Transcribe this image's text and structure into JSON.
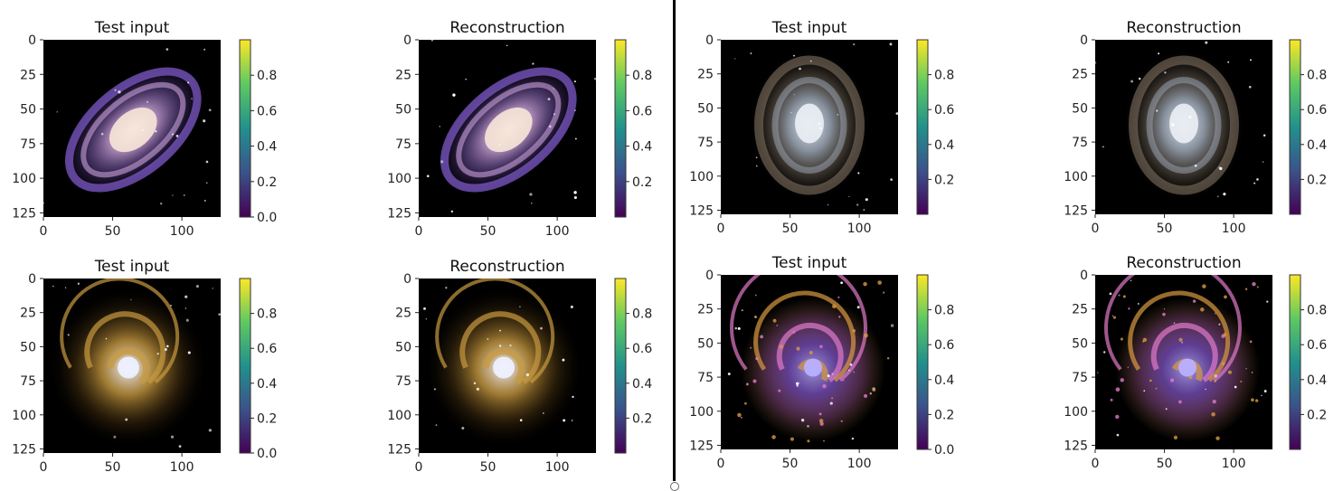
{
  "chart_data": [
    {
      "type": "image",
      "title": "Test input",
      "xticks": [
        "0",
        "50",
        "100"
      ],
      "yticks": [
        "0",
        "25",
        "50",
        "75",
        "100",
        "125"
      ],
      "xlim": [
        0,
        128
      ],
      "ylim": [
        128,
        0
      ],
      "colorbar": {
        "colormap": "viridis",
        "range": [
          0,
          1
        ],
        "ticks": [
          "0.0",
          "0.2",
          "0.4",
          "0.6",
          "0.8"
        ]
      },
      "image_content": {
        "style": "barred-spiral",
        "palette": [
          "#f6e6d8",
          "#c9a0d8",
          "#7e5ac8",
          "#3a1d55"
        ],
        "tilt_deg": -40
      }
    },
    {
      "type": "image",
      "title": "Reconstruction",
      "xticks": [
        "0",
        "50",
        "100"
      ],
      "yticks": [
        "0",
        "25",
        "50",
        "75",
        "100",
        "125"
      ],
      "xlim": [
        0,
        128
      ],
      "ylim": [
        128,
        0
      ],
      "colorbar": {
        "colormap": "viridis",
        "range": [
          0,
          1
        ],
        "ticks": [
          "0.2",
          "0.4",
          "0.6",
          "0.8"
        ]
      },
      "image_content": {
        "style": "barred-spiral",
        "palette": [
          "#f6e6d8",
          "#c9a0d8",
          "#7e5ac8",
          "#3a1d55"
        ],
        "tilt_deg": -40
      }
    },
    {
      "type": "image",
      "title": "Test input",
      "xticks": [
        "0",
        "50",
        "100"
      ],
      "yticks": [
        "0",
        "25",
        "50",
        "75",
        "100",
        "125"
      ],
      "xlim": [
        0,
        128
      ],
      "ylim": [
        128,
        0
      ],
      "colorbar": {
        "colormap": "viridis",
        "range": [
          0,
          1
        ],
        "ticks": [
          "0.2",
          "0.4",
          "0.6",
          "0.8"
        ]
      },
      "image_content": {
        "style": "face-on-dusty",
        "palette": [
          "#e8ecf2",
          "#a8b4c4",
          "#8a7a68",
          "#2a2420"
        ],
        "tilt_deg": 0
      }
    },
    {
      "type": "image",
      "title": "Reconstruction",
      "xticks": [
        "0",
        "50",
        "100"
      ],
      "yticks": [
        "0",
        "25",
        "50",
        "75",
        "100",
        "125"
      ],
      "xlim": [
        0,
        128
      ],
      "ylim": [
        128,
        0
      ],
      "colorbar": {
        "colormap": "viridis",
        "range": [
          0,
          1
        ],
        "ticks": [
          "0.2",
          "0.4",
          "0.6",
          "0.8"
        ]
      },
      "image_content": {
        "style": "face-on-dusty",
        "palette": [
          "#e8ecf2",
          "#a8b4c4",
          "#8a7a68",
          "#2a2420"
        ],
        "tilt_deg": 0
      }
    },
    {
      "type": "image",
      "title": "Test input",
      "xticks": [
        "0",
        "50",
        "100"
      ],
      "yticks": [
        "0",
        "25",
        "50",
        "75",
        "100",
        "125"
      ],
      "xlim": [
        0,
        128
      ],
      "ylim": [
        128,
        0
      ],
      "colorbar": {
        "colormap": "viridis",
        "range": [
          0,
          1
        ],
        "ticks": [
          "0.0",
          "0.2",
          "0.4",
          "0.6",
          "0.8"
        ]
      },
      "image_content": {
        "style": "golden-spiral",
        "palette": [
          "#eef0ff",
          "#c89a40",
          "#6a4a18",
          "#1a1208"
        ],
        "tilt_deg": 0
      }
    },
    {
      "type": "image",
      "title": "Reconstruction",
      "xticks": [
        "0",
        "50",
        "100"
      ],
      "yticks": [
        "0",
        "25",
        "50",
        "75",
        "100",
        "125"
      ],
      "xlim": [
        0,
        128
      ],
      "ylim": [
        128,
        0
      ],
      "colorbar": {
        "colormap": "viridis",
        "range": [
          0,
          1
        ],
        "ticks": [
          "0.2",
          "0.4",
          "0.6",
          "0.8"
        ]
      },
      "image_content": {
        "style": "golden-spiral",
        "palette": [
          "#eef0ff",
          "#c89a40",
          "#6a4a18",
          "#1a1208"
        ],
        "tilt_deg": 0
      }
    },
    {
      "type": "image",
      "title": "Test input",
      "xticks": [
        "0",
        "50",
        "100"
      ],
      "yticks": [
        "0",
        "25",
        "50",
        "75",
        "100",
        "125"
      ],
      "xlim": [
        0,
        128
      ],
      "ylim": [
        128,
        0
      ],
      "colorbar": {
        "colormap": "viridis",
        "range": [
          0,
          1
        ],
        "ticks": [
          "0.0",
          "0.2",
          "0.4",
          "0.6",
          "0.8"
        ]
      },
      "image_content": {
        "style": "pinwheel",
        "palette": [
          "#b8b0ff",
          "#8a5ad8",
          "#e07ac8",
          "#d89a40"
        ],
        "tilt_deg": 0
      }
    },
    {
      "type": "image",
      "title": "Reconstruction",
      "xticks": [
        "0",
        "50",
        "100"
      ],
      "yticks": [
        "0",
        "25",
        "50",
        "75",
        "100",
        "125"
      ],
      "xlim": [
        0,
        128
      ],
      "ylim": [
        128,
        0
      ],
      "colorbar": {
        "colormap": "viridis",
        "range": [
          0,
          1
        ],
        "ticks": [
          "0.2",
          "0.4",
          "0.6",
          "0.8"
        ]
      },
      "image_content": {
        "style": "pinwheel",
        "palette": [
          "#b8b0ff",
          "#8a5ad8",
          "#e07ac8",
          "#d89a40"
        ],
        "tilt_deg": 0
      }
    }
  ],
  "colors": {
    "viridis": [
      "#440154",
      "#3b528b",
      "#21918c",
      "#5ec962",
      "#fde725"
    ],
    "background": "#000000"
  }
}
